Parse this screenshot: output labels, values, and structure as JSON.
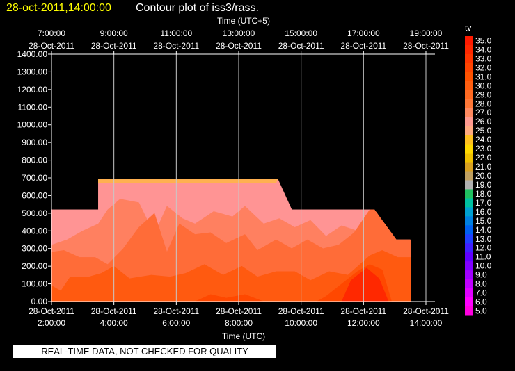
{
  "header": {
    "date_time": "28-oct-2011,14:00:00",
    "title": "Contour plot of iss3/rass."
  },
  "notice": "REAL-TIME DATA, NOT CHECKED FOR QUALITY",
  "chart_data": {
    "type": "contour",
    "variable": "tv",
    "top_axis_label": "Time (UTC+5)",
    "bottom_axis_label": "Time (UTC)",
    "ylim": [
      0,
      1400
    ],
    "xlim_hours_utc": [
      2,
      14
    ],
    "y_ticks": [
      "0.00",
      "100.00",
      "200.00",
      "300.00",
      "400.00",
      "500.00",
      "600.00",
      "700.00",
      "800.00",
      "900.00",
      "1000.00",
      "1100.00",
      "1200.00",
      "1300.00",
      "1400.00"
    ],
    "bottom_ticks": [
      {
        "date": "28-Oct-2011",
        "time": "2:00:00"
      },
      {
        "date": "28-Oct-2011",
        "time": "4:00:00"
      },
      {
        "date": "28-Oct-2011",
        "time": "6:00:00"
      },
      {
        "date": "28-Oct-2011",
        "time": "8:00:00"
      },
      {
        "date": "28-Oct-2011",
        "time": "10:00:00"
      },
      {
        "date": "28-Oct-2011",
        "time": "12:00:00"
      },
      {
        "date": "28-Oct-2011",
        "time": "14:00:00"
      }
    ],
    "top_ticks": [
      {
        "time": "7:00:00",
        "date": "28-Oct-2011"
      },
      {
        "time": "9:00:00",
        "date": "28-Oct-2011"
      },
      {
        "time": "11:00:00",
        "date": "28-Oct-2011"
      },
      {
        "time": "13:00:00",
        "date": "28-Oct-2011"
      },
      {
        "time": "15:00:00",
        "date": "28-Oct-2011"
      },
      {
        "time": "17:00:00",
        "date": "28-Oct-2011"
      },
      {
        "time": "19:00:00",
        "date": "28-Oct-2011"
      }
    ],
    "colorbar": {
      "levels": [
        "35.0",
        "34.0",
        "33.0",
        "32.0",
        "31.0",
        "30.0",
        "29.0",
        "28.0",
        "27.0",
        "26.0",
        "25.0",
        "24.0",
        "23.0",
        "22.0",
        "21.0",
        "20.0",
        "19.0",
        "18.0",
        "17.0",
        "16.0",
        "15.0",
        "14.0",
        "13.0",
        "12.0",
        "11.0",
        "10.0",
        "9.0",
        "8.0",
        "7.0",
        "6.0",
        "5.0"
      ],
      "colors": [
        "#ff1a00",
        "#ff2800",
        "#ff3600",
        "#ff4400",
        "#ff5200",
        "#ff5e10",
        "#ff6a22",
        "#ff7838",
        "#ff8a60",
        "#ff9a90",
        "#ffaa80",
        "#ffc020",
        "#ffd800",
        "#f0c000",
        "#d8a020",
        "#c0a060",
        "#b0b0b0",
        "#20c060",
        "#00c0a0",
        "#00a0d0",
        "#0080e0",
        "#0060f0",
        "#2040ff",
        "#4020ff",
        "#6000ff",
        "#8000ff",
        "#a000ff",
        "#c000ff",
        "#e000ff",
        "#ff00ff",
        "#ff00e0"
      ]
    },
    "regions": [
      {
        "name": "region-26",
        "value": 26,
        "color": "#ff9494",
        "points": [
          [
            2,
            520
          ],
          [
            3.5,
            520
          ],
          [
            3.5,
            695
          ],
          [
            9.25,
            695
          ],
          [
            9.7,
            520
          ],
          [
            12.35,
            520
          ],
          [
            13.05,
            350
          ],
          [
            13.5,
            350
          ],
          [
            13.5,
            0
          ],
          [
            2,
            0
          ]
        ]
      },
      {
        "name": "region-25",
        "value": 25,
        "color": "#ffb050",
        "points": [
          [
            3.5,
            695
          ],
          [
            9.25,
            695
          ],
          [
            9.2,
            672
          ],
          [
            3.5,
            672
          ]
        ]
      },
      {
        "name": "region-27",
        "value": 27,
        "color": "#ff8060",
        "points": [
          [
            2,
            320
          ],
          [
            2.5,
            350
          ],
          [
            3,
            400
          ],
          [
            3.5,
            440
          ],
          [
            3.8,
            520
          ],
          [
            4.2,
            580
          ],
          [
            4.8,
            560
          ],
          [
            5.3,
            380
          ],
          [
            5.7,
            540
          ],
          [
            6.2,
            470
          ],
          [
            6.6,
            440
          ],
          [
            7.2,
            510
          ],
          [
            7.8,
            480
          ],
          [
            8.2,
            540
          ],
          [
            8.8,
            440
          ],
          [
            9.3,
            470
          ],
          [
            9.8,
            420
          ],
          [
            10.3,
            460
          ],
          [
            10.8,
            370
          ],
          [
            11.3,
            430
          ],
          [
            11.8,
            400
          ],
          [
            12.3,
            420
          ],
          [
            12.35,
            520
          ],
          [
            13.05,
            350
          ],
          [
            13.5,
            350
          ],
          [
            13.5,
            0
          ],
          [
            2,
            0
          ]
        ]
      },
      {
        "name": "region-28",
        "value": 28,
        "color": "#ff6c38",
        "points": [
          [
            2,
            280
          ],
          [
            2.4,
            290
          ],
          [
            2.9,
            250
          ],
          [
            3.4,
            250
          ],
          [
            3.8,
            210
          ],
          [
            4.3,
            300
          ],
          [
            4.8,
            420
          ],
          [
            5.3,
            500
          ],
          [
            5.7,
            280
          ],
          [
            6.1,
            440
          ],
          [
            6.6,
            380
          ],
          [
            7.1,
            390
          ],
          [
            7.6,
            330
          ],
          [
            8.2,
            380
          ],
          [
            8.6,
            290
          ],
          [
            9.2,
            350
          ],
          [
            9.7,
            300
          ],
          [
            10.2,
            350
          ],
          [
            10.7,
            300
          ],
          [
            11.2,
            320
          ],
          [
            11.7,
            390
          ],
          [
            12.2,
            520
          ],
          [
            12.35,
            520
          ],
          [
            13.05,
            350
          ],
          [
            13.5,
            350
          ],
          [
            13.5,
            0
          ],
          [
            2,
            0
          ]
        ]
      },
      {
        "name": "region-29",
        "value": 29,
        "color": "#ff5a10",
        "points": [
          [
            2,
            90
          ],
          [
            2.3,
            60
          ],
          [
            2.6,
            140
          ],
          [
            3.2,
            140
          ],
          [
            3.6,
            160
          ],
          [
            4,
            200
          ],
          [
            4.5,
            130
          ],
          [
            5.2,
            150
          ],
          [
            5.8,
            140
          ],
          [
            6.3,
            160
          ],
          [
            6.9,
            210
          ],
          [
            7.5,
            150
          ],
          [
            8.1,
            200
          ],
          [
            8.6,
            140
          ],
          [
            9.2,
            170
          ],
          [
            9.8,
            170
          ],
          [
            10.3,
            120
          ],
          [
            10.9,
            170
          ],
          [
            11.5,
            150
          ],
          [
            12.2,
            260
          ],
          [
            12.6,
            290
          ],
          [
            13.1,
            250
          ],
          [
            13.5,
            250
          ],
          [
            13.5,
            0
          ],
          [
            2,
            0
          ]
        ]
      },
      {
        "name": "region-30",
        "value": 30,
        "color": "#ff4800",
        "points": [
          [
            6.6,
            0
          ],
          [
            7.1,
            40
          ],
          [
            7.6,
            20
          ],
          [
            8.2,
            40
          ],
          [
            8.8,
            0
          ],
          [
            10.5,
            0
          ],
          [
            10.8,
            30
          ],
          [
            11.3,
            100
          ],
          [
            11.8,
            170
          ],
          [
            12.2,
            210
          ],
          [
            12.6,
            180
          ],
          [
            12.9,
            0
          ]
        ]
      },
      {
        "name": "region-31",
        "value": 31,
        "color": "#ff2800",
        "points": [
          [
            11.3,
            0
          ],
          [
            11.6,
            120
          ],
          [
            12.1,
            190
          ],
          [
            12.5,
            130
          ],
          [
            12.8,
            0
          ]
        ]
      }
    ]
  }
}
